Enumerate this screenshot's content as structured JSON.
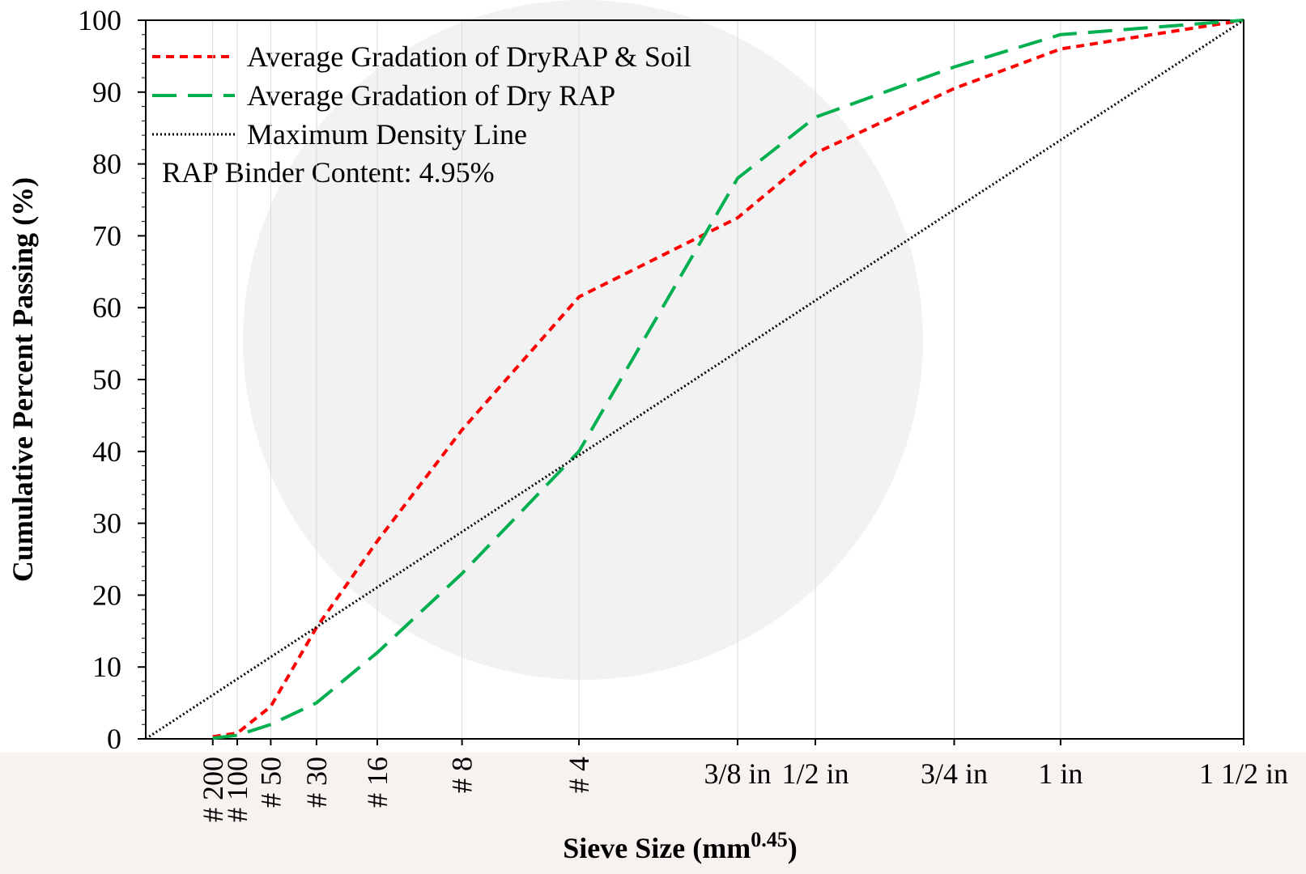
{
  "chart_data": {
    "type": "line",
    "ylabel": "Cumulative Percent Passing (%)",
    "xlabel": {
      "text": "Sieve Size (mm",
      "sup": "0.45",
      "end": ")"
    },
    "annotation": "RAP Binder Content: 4.95%",
    "xlim": [
      0,
      5.109
    ],
    "ylim": [
      0,
      100
    ],
    "yticks": [
      0,
      10,
      20,
      30,
      40,
      50,
      60,
      70,
      80,
      90,
      100
    ],
    "xticks": [
      {
        "value": 0.3118,
        "label": "# 200"
      },
      {
        "value": 0.4258,
        "label": "# 100"
      },
      {
        "value": 0.5817,
        "label": "# 50"
      },
      {
        "value": 0.7946,
        "label": "# 30"
      },
      {
        "value": 1.0773,
        "label": "# 16"
      },
      {
        "value": 1.4717,
        "label": "# 8"
      },
      {
        "value": 2.016,
        "label": "# 4"
      },
      {
        "value": 2.754,
        "label": "3/8 in"
      },
      {
        "value": 3.116,
        "label": "1/2 in"
      },
      {
        "value": 3.762,
        "label": "3/4 in"
      },
      {
        "value": 4.257,
        "label": "1 in"
      },
      {
        "value": 5.109,
        "label": "1 1/2 in"
      }
    ],
    "grid": true,
    "series": [
      {
        "name": "Average Gradation of DryRAP & Soil",
        "color": "#ff0000",
        "dash": "10 7",
        "width": 4,
        "x": [
          0.3118,
          0.4258,
          0.5817,
          0.7946,
          1.0773,
          1.4717,
          2.016,
          2.754,
          3.116,
          3.762,
          4.257,
          5.109
        ],
        "values": [
          0.3,
          0.8,
          4.5,
          15.5,
          27.5,
          43,
          61.5,
          72.5,
          81.5,
          90.5,
          96,
          100
        ]
      },
      {
        "name": "Average Gradation of Dry RAP",
        "color": "#00b050",
        "dash": "30 14",
        "width": 4,
        "x": [
          0.3118,
          0.4258,
          0.5817,
          0.7946,
          1.0773,
          1.4717,
          2.016,
          2.754,
          3.116,
          3.762,
          4.257,
          5.109
        ],
        "values": [
          0.1,
          0.5,
          2,
          5,
          12,
          23,
          40,
          78,
          86.5,
          93.5,
          98,
          100
        ]
      },
      {
        "name": "Maximum Density Line",
        "color": "#000000",
        "dash": "2 3",
        "width": 3,
        "x": [
          0,
          5.109
        ],
        "values": [
          0,
          100
        ]
      }
    ]
  }
}
